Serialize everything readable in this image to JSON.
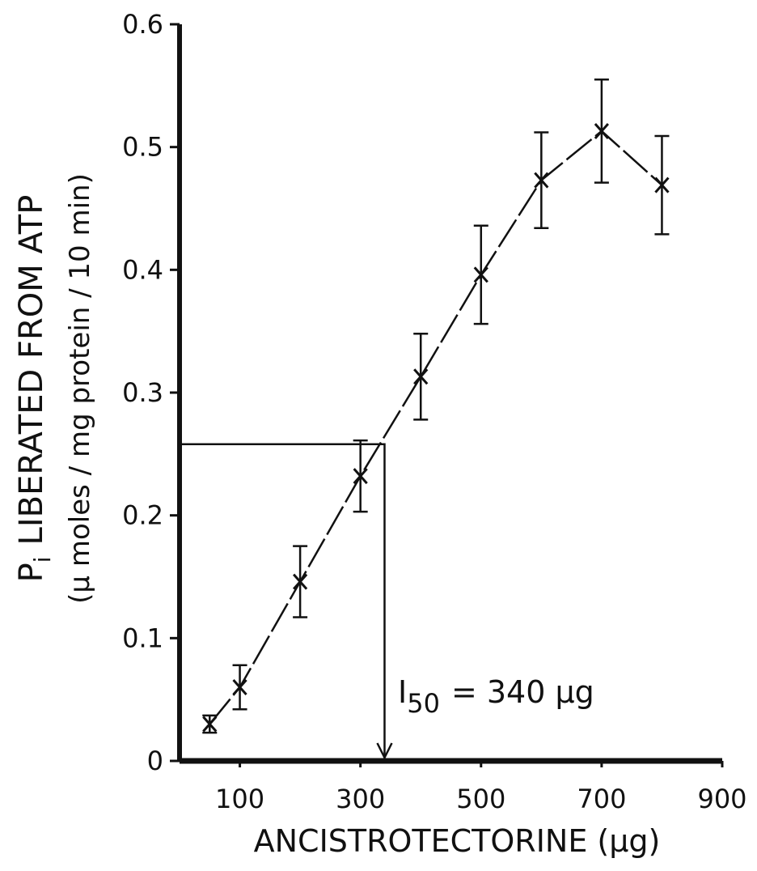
{
  "chart_data": {
    "type": "line",
    "x_label": "ANCISTROTECTORINE (μg)",
    "y_label_main": "P",
    "y_label_sub": "i",
    "y_label_rest": "LIBERATED  FROM  ATP",
    "y_label_units": "(μ moles / mg protein / 10 min)",
    "x": [
      50,
      100,
      200,
      300,
      400,
      500,
      600,
      700,
      800
    ],
    "values": [
      0.03,
      0.06,
      0.146,
      0.232,
      0.313,
      0.396,
      0.473,
      0.513,
      0.469
    ],
    "errors": [
      0.007,
      0.018,
      0.029,
      0.029,
      0.035,
      0.04,
      0.039,
      0.042,
      0.04
    ],
    "color": "#111111",
    "xlim": [
      0,
      900
    ],
    "xticks": [
      100,
      300,
      500,
      700,
      900
    ],
    "ylim": [
      0,
      0.6
    ],
    "yticks": [
      0,
      0.1,
      0.2,
      0.3,
      0.4,
      0.5,
      0.6
    ],
    "i50": {
      "x": 340,
      "y": 0.258,
      "text": "I",
      "subscript": "50",
      "suffix": "= 340 μg"
    }
  }
}
